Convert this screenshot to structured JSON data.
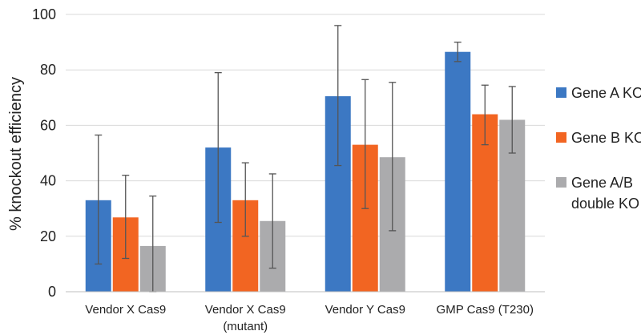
{
  "chart_data": {
    "type": "bar",
    "title": "",
    "xlabel": "",
    "ylabel": "% knockout efficiency",
    "ylim": [
      0,
      100
    ],
    "yticks": [
      0,
      20,
      40,
      60,
      80,
      100
    ],
    "grid": true,
    "legend_position": "right",
    "categories": [
      [
        "Vendor X Cas9"
      ],
      [
        "Vendor X Cas9",
        "(mutant)"
      ],
      [
        "Vendor Y Cas9"
      ],
      [
        "GMP Cas9 (T230)"
      ]
    ],
    "series": [
      {
        "name": [
          "Gene A KO"
        ],
        "color": "#3C78C3",
        "values": [
          33,
          52,
          70.5,
          86.5
        ],
        "error_low": [
          10,
          25,
          45.5,
          83
        ],
        "error_high": [
          56.5,
          79,
          96,
          90
        ]
      },
      {
        "name": [
          "Gene B KO"
        ],
        "color": "#F26522",
        "values": [
          26.8,
          33,
          53,
          64
        ],
        "error_low": [
          12,
          20,
          30,
          53
        ],
        "error_high": [
          42,
          46.5,
          76.5,
          74.5
        ]
      },
      {
        "name": [
          "Gene A/B",
          "double KO"
        ],
        "color": "#ABABAD",
        "values": [
          16.5,
          25.5,
          48.5,
          62
        ],
        "error_low": [
          0,
          8.5,
          22,
          50
        ],
        "error_high": [
          34.5,
          42.5,
          75.5,
          74
        ]
      }
    ]
  }
}
